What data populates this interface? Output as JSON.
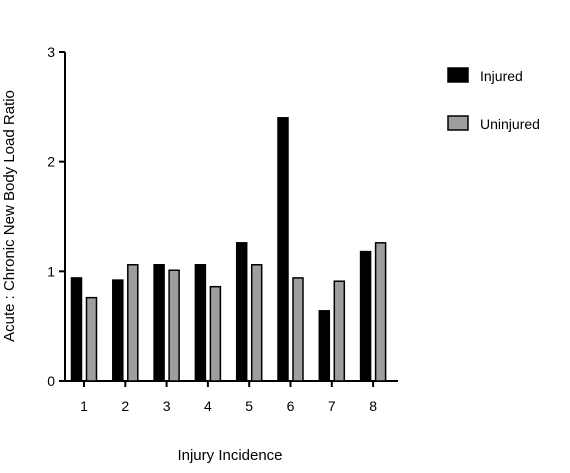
{
  "chart_data": {
    "type": "bar",
    "xlabel": "Injury Incidence",
    "ylabel": "Acute : Chronic New Body Load Ratio",
    "ylim": [
      0,
      3
    ],
    "yticks": [
      0,
      1,
      2,
      3
    ],
    "categories": [
      "1",
      "2",
      "3",
      "4",
      "5",
      "6",
      "7",
      "8"
    ],
    "series": [
      {
        "name": "Injured",
        "color": "#000000",
        "values": [
          0.94,
          0.92,
          1.06,
          1.06,
          1.26,
          2.4,
          0.64,
          1.18
        ]
      },
      {
        "name": "Uninjured",
        "color": "#9e9e9e",
        "values": [
          0.76,
          1.06,
          1.01,
          0.86,
          1.06,
          0.94,
          0.91,
          1.26
        ]
      }
    ],
    "legend": "right",
    "grid": false
  }
}
